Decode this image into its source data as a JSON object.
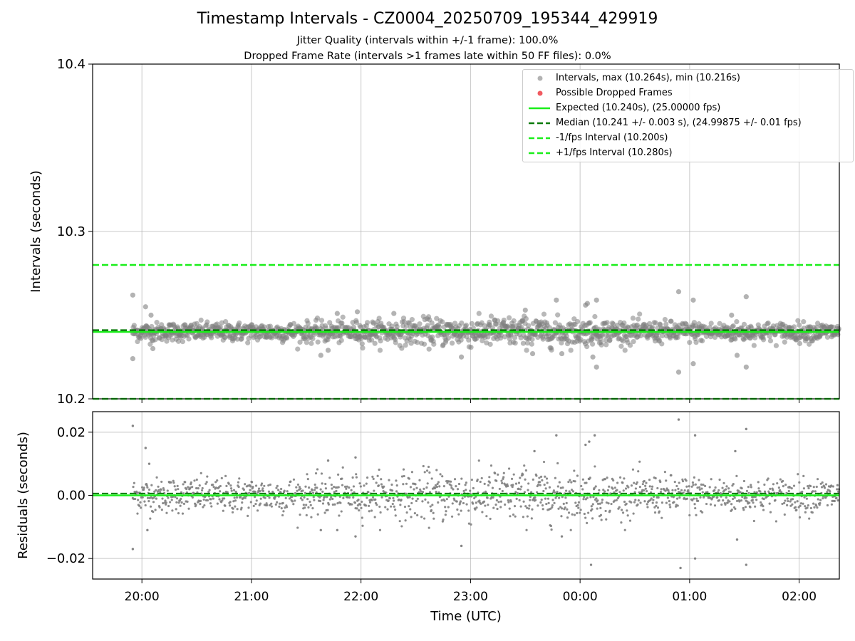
{
  "header": {
    "title": "Timestamp Intervals - CZ0004_20250709_195344_429919",
    "subtitle1": "Jitter Quality (intervals within +/-1 frame): 100.0%",
    "subtitle2": "Dropped Frame Rate (intervals >1 frames late within 50 FF files): 0.0%"
  },
  "legend": {
    "intervals": "Intervals, max (10.264s), min (10.216s)",
    "dropped": "Possible Dropped Frames",
    "expected": "Expected (10.240s), (25.00000 fps)",
    "median": "Median (10.241 +/- 0.003 s), (24.99875 +/- 0.01 fps)",
    "minus": "-1/fps Interval (10.200s)",
    "plus": "+1/fps Interval (10.280s)"
  },
  "colors": {
    "points": "#808080",
    "dropped": "#f15a60",
    "expected": "#1aee1a",
    "median": "#0a7a0a",
    "bounds": "#1aee1a",
    "grid": "#b0b0b0"
  },
  "chart_data": [
    {
      "type": "scatter",
      "ylabel": "Intervals (seconds)",
      "ylim": [
        10.2,
        10.4
      ],
      "yticks": [
        10.2,
        10.3,
        10.4
      ],
      "ytick_labels": [
        "10.2",
        "10.3",
        "10.4"
      ],
      "x_range_hours": [
        "19:33",
        "02:22"
      ],
      "grid": true,
      "legend_position": "top-right",
      "reference_lines": {
        "expected": 10.24,
        "median": 10.241,
        "minus_1_fps": 10.2,
        "plus_1_fps": 10.28
      },
      "series": [
        {
          "name": "Intervals, max (10.264s), min (10.216s)",
          "points_summary": {
            "center": 10.24,
            "typical_spread": 0.004,
            "max": 10.264,
            "min": 10.216
          },
          "outliers": [
            [
              "19:55",
              10.262
            ],
            [
              "19:55",
              10.224
            ],
            [
              "20:02",
              10.255
            ],
            [
              "20:05",
              10.25
            ],
            [
              "20:06",
              10.23
            ],
            [
              "21:38",
              10.226
            ],
            [
              "21:42",
              10.229
            ],
            [
              "21:47",
              10.251
            ],
            [
              "21:58",
              10.252
            ],
            [
              "22:18",
              10.251
            ],
            [
              "22:55",
              10.225
            ],
            [
              "23:30",
              10.253
            ],
            [
              "23:34",
              10.227
            ],
            [
              "23:47",
              10.259
            ],
            [
              "23:50",
              10.227
            ],
            [
              "00:03",
              10.256
            ],
            [
              "00:04",
              10.257
            ],
            [
              "00:07",
              10.225
            ],
            [
              "00:09",
              10.259
            ],
            [
              "00:09",
              10.219
            ],
            [
              "00:54",
              10.264
            ],
            [
              "00:54",
              10.216
            ],
            [
              "01:02",
              10.259
            ],
            [
              "01:02",
              10.221
            ],
            [
              "01:23",
              10.25
            ],
            [
              "01:26",
              10.226
            ],
            [
              "01:31",
              10.261
            ],
            [
              "01:31",
              10.219
            ]
          ]
        },
        {
          "name": "Possible Dropped Frames",
          "points": []
        }
      ]
    },
    {
      "type": "scatter",
      "xlabel": "Time (UTC)",
      "ylabel": "Residuals (seconds)",
      "ylim": [
        -0.0265,
        0.0265
      ],
      "yticks": [
        -0.02,
        0.0,
        0.02
      ],
      "ytick_labels": [
        "−0.02",
        "0.00",
        "0.02"
      ],
      "xticks": [
        "20:00",
        "21:00",
        "22:00",
        "23:00",
        "00:00",
        "01:00",
        "02:00"
      ],
      "grid": true,
      "reference_lines": {
        "zero": 0.0,
        "median_residual": 0.0006
      },
      "series": [
        {
          "name": "Residuals",
          "points_summary": {
            "center": 0.0,
            "typical_spread": 0.004,
            "max": 0.024,
            "min": -0.024
          },
          "outliers": [
            [
              "19:55",
              0.022
            ],
            [
              "19:55",
              -0.017
            ],
            [
              "20:02",
              0.015
            ],
            [
              "20:04",
              0.01
            ],
            [
              "20:03",
              -0.011
            ],
            [
              "21:38",
              -0.011
            ],
            [
              "21:42",
              0.011
            ],
            [
              "21:47",
              -0.011
            ],
            [
              "21:57",
              0.012
            ],
            [
              "21:57",
              -0.013
            ],
            [
              "22:55",
              -0.016
            ],
            [
              "23:35",
              0.014
            ],
            [
              "23:47",
              0.019
            ],
            [
              "23:50",
              -0.013
            ],
            [
              "00:03",
              0.016
            ],
            [
              "00:05",
              0.017
            ],
            [
              "00:08",
              0.019
            ],
            [
              "00:06",
              -0.022
            ],
            [
              "00:54",
              0.024
            ],
            [
              "00:55",
              -0.023
            ],
            [
              "01:03",
              0.019
            ],
            [
              "01:03",
              -0.02
            ],
            [
              "01:25",
              0.014
            ],
            [
              "01:26",
              -0.014
            ],
            [
              "01:31",
              0.021
            ],
            [
              "01:31",
              -0.022
            ]
          ]
        }
      ]
    }
  ]
}
